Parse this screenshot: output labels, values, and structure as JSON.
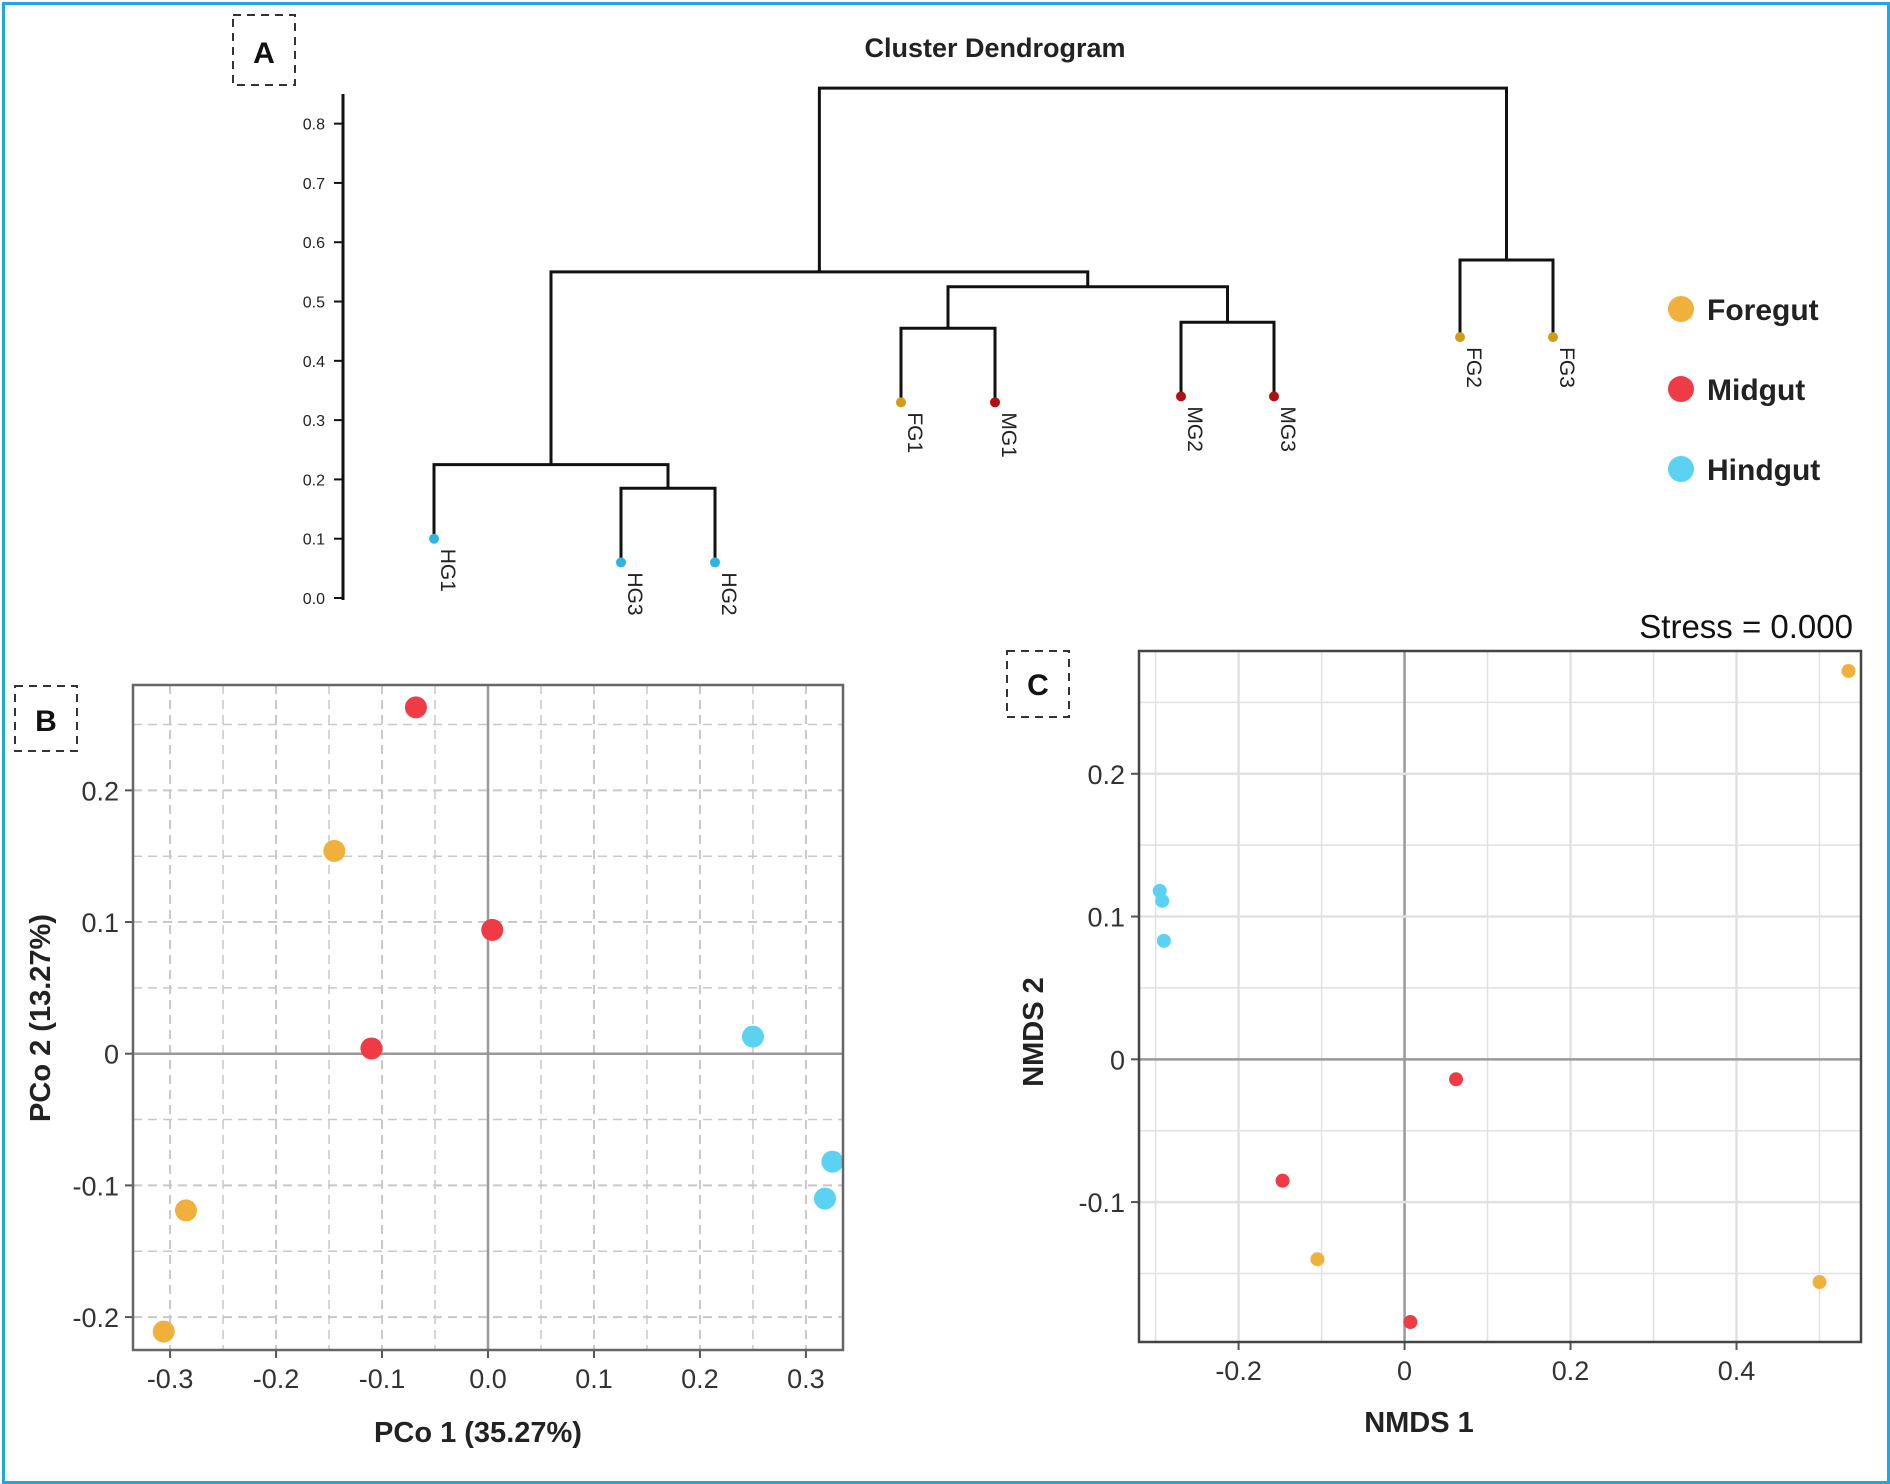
{
  "colors": {
    "foregut": "#f0b03c",
    "midgut": "#ee3b45",
    "hindgut": "#5bd2f2",
    "frame": "#1fa8e0"
  },
  "panels": {
    "a": "A",
    "b": "B",
    "c": "C"
  },
  "chart_data": [
    {
      "id": "dendrogram",
      "type": "dendrogram",
      "title": "Cluster Dendrogram",
      "ylim": [
        0,
        0.85
      ],
      "yticks": [
        "0.0",
        "0.1",
        "0.2",
        "0.3",
        "0.4",
        "0.5",
        "0.6",
        "0.7",
        "0.8"
      ],
      "leaves": [
        {
          "label": "HG1",
          "group": "hindgut",
          "height": 0.1
        },
        {
          "label": "HG3",
          "group": "hindgut",
          "height": 0.06
        },
        {
          "label": "HG2",
          "group": "hindgut",
          "height": 0.06
        },
        {
          "label": "FG1",
          "group": "foregut",
          "height": 0.33
        },
        {
          "label": "MG1",
          "group": "midgut",
          "height": 0.33
        },
        {
          "label": "MG2",
          "group": "midgut",
          "height": 0.34
        },
        {
          "label": "MG3",
          "group": "midgut",
          "height": 0.34
        },
        {
          "label": "FG2",
          "group": "foregut",
          "height": 0.44
        },
        {
          "label": "FG3",
          "group": "foregut",
          "height": 0.44
        }
      ],
      "merges": [
        {
          "children": [
            "L1",
            "L2"
          ],
          "height": 0.185
        },
        {
          "children": [
            "L0",
            "N0"
          ],
          "height": 0.225
        },
        {
          "children": [
            "L3",
            "L4"
          ],
          "height": 0.455
        },
        {
          "children": [
            "L5",
            "L6"
          ],
          "height": 0.465
        },
        {
          "children": [
            "N2",
            "N3"
          ],
          "height": 0.525
        },
        {
          "children": [
            "N1",
            "N4"
          ],
          "height": 0.55
        },
        {
          "children": [
            "L7",
            "L8"
          ],
          "height": 0.57
        },
        {
          "children": [
            "N5",
            "N6"
          ],
          "height": 0.86
        }
      ]
    },
    {
      "id": "pcoa",
      "type": "scatter",
      "xlabel": "PCo 1 (35.27%)",
      "ylabel": "PCo 2 (13.27%)",
      "xlim": [
        -0.335,
        0.335
      ],
      "ylim": [
        -0.225,
        0.28
      ],
      "xticks": [
        {
          "v": -0.3,
          "t": "-0.3"
        },
        {
          "v": -0.2,
          "t": "-0.2"
        },
        {
          "v": -0.1,
          "t": "-0.1"
        },
        {
          "v": 0.0,
          "t": "0.0"
        },
        {
          "v": 0.1,
          "t": "0.1"
        },
        {
          "v": 0.2,
          "t": "0.2"
        },
        {
          "v": 0.3,
          "t": "0.3"
        }
      ],
      "yticks": [
        {
          "v": 0.2,
          "t": "0.2"
        },
        {
          "v": 0.1,
          "t": "0.1"
        },
        {
          "v": 0.0,
          "t": "0"
        },
        {
          "v": -0.1,
          "t": "-0.1"
        },
        {
          "v": -0.2,
          "t": "-0.2"
        }
      ],
      "series": [
        {
          "name": "Foregut",
          "group": "foregut",
          "points": [
            [
              -0.145,
              0.154
            ],
            [
              -0.285,
              -0.119
            ],
            [
              -0.306,
              -0.211
            ]
          ]
        },
        {
          "name": "Midgut",
          "group": "midgut",
          "points": [
            [
              -0.068,
              0.263
            ],
            [
              0.004,
              0.094
            ],
            [
              -0.11,
              0.004
            ]
          ]
        },
        {
          "name": "Hindgut",
          "group": "hindgut",
          "points": [
            [
              0.25,
              0.013
            ],
            [
              0.325,
              -0.082
            ],
            [
              0.318,
              -0.11
            ]
          ]
        }
      ]
    },
    {
      "id": "nmds",
      "type": "scatter",
      "xlabel": "NMDS 1",
      "ylabel": "NMDS 2",
      "stress": "Stress = 0.000",
      "xlim": [
        -0.32,
        0.55
      ],
      "ylim": [
        -0.198,
        0.286
      ],
      "xticks": [
        {
          "v": -0.2,
          "t": "-0.2"
        },
        {
          "v": 0.0,
          "t": "0"
        },
        {
          "v": 0.2,
          "t": "0.2"
        },
        {
          "v": 0.4,
          "t": "0.4"
        }
      ],
      "yticks": [
        {
          "v": 0.2,
          "t": "0.2"
        },
        {
          "v": 0.1,
          "t": "0.1"
        },
        {
          "v": 0.0,
          "t": "0"
        },
        {
          "v": -0.1,
          "t": "-0.1"
        }
      ],
      "series": [
        {
          "name": "Foregut",
          "group": "foregut",
          "points": [
            [
              0.535,
              0.272
            ],
            [
              0.5,
              -0.156
            ],
            [
              -0.105,
              -0.14
            ]
          ]
        },
        {
          "name": "Midgut",
          "group": "midgut",
          "points": [
            [
              0.062,
              -0.014
            ],
            [
              -0.147,
              -0.085
            ],
            [
              0.007,
              -0.184
            ]
          ]
        },
        {
          "name": "Hindgut",
          "group": "hindgut",
          "points": [
            [
              -0.295,
              0.118
            ],
            [
              -0.292,
              0.111
            ],
            [
              -0.29,
              0.083
            ]
          ]
        }
      ]
    }
  ],
  "legend": [
    {
      "label": "Foregut",
      "group": "foregut"
    },
    {
      "label": "Midgut",
      "group": "midgut"
    },
    {
      "label": "Hindgut",
      "group": "hindgut"
    }
  ]
}
